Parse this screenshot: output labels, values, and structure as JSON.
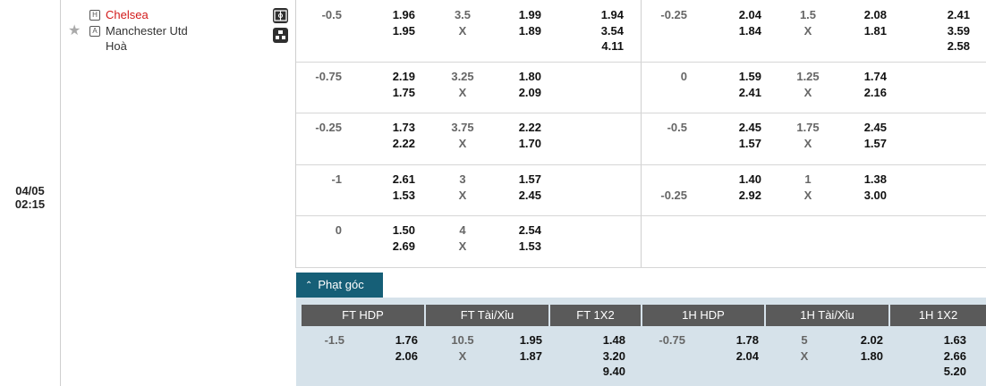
{
  "match": {
    "date": "04/05",
    "time": "02:15",
    "home_badge": "H",
    "away_badge": "A",
    "home_team": "Chelsea",
    "away_team": "Manchester Utd",
    "draw_label": "Hoà",
    "home_color": "#d21a1a"
  },
  "icons": {
    "favorite": "star-icon",
    "stats": "field-icon",
    "lineup": "lineup-icon"
  },
  "odds_rows": [
    {
      "ft_hdp": "-0.5",
      "ft_hdp_home": "1.96",
      "ft_hdp_away": "1.95",
      "ft_ou": "3.5",
      "ft_ou_x": "X",
      "ft_ou_over": "1.99",
      "ft_ou_under": "1.89",
      "ft_1x2": [
        "1.94",
        "3.54",
        "4.11"
      ],
      "h1_hdp_top": "-0.25",
      "h1_hdp_bottom": "",
      "h1_hdp_home": "2.04",
      "h1_hdp_away": "1.84",
      "h1_ou": "1.5",
      "h1_ou_x": "X",
      "h1_ou_over": "2.08",
      "h1_ou_under": "1.81",
      "h1_1x2": [
        "2.41",
        "3.59",
        "2.58"
      ]
    },
    {
      "ft_hdp": "-0.75",
      "ft_hdp_home": "2.19",
      "ft_hdp_away": "1.75",
      "ft_ou": "3.25",
      "ft_ou_x": "X",
      "ft_ou_over": "1.80",
      "ft_ou_under": "2.09",
      "ft_1x2": [
        "",
        "",
        ""
      ],
      "h1_hdp_top": "0",
      "h1_hdp_bottom": "",
      "h1_hdp_home": "1.59",
      "h1_hdp_away": "2.41",
      "h1_ou": "1.25",
      "h1_ou_x": "X",
      "h1_ou_over": "1.74",
      "h1_ou_under": "2.16",
      "h1_1x2": [
        "",
        "",
        ""
      ]
    },
    {
      "ft_hdp": "-0.25",
      "ft_hdp_home": "1.73",
      "ft_hdp_away": "2.22",
      "ft_ou": "3.75",
      "ft_ou_x": "X",
      "ft_ou_over": "2.22",
      "ft_ou_under": "1.70",
      "ft_1x2": [
        "",
        "",
        ""
      ],
      "h1_hdp_top": "-0.5",
      "h1_hdp_bottom": "",
      "h1_hdp_home": "2.45",
      "h1_hdp_away": "1.57",
      "h1_ou": "1.75",
      "h1_ou_x": "X",
      "h1_ou_over": "2.45",
      "h1_ou_under": "1.57",
      "h1_1x2": [
        "",
        "",
        ""
      ]
    },
    {
      "ft_hdp": "-1",
      "ft_hdp_home": "2.61",
      "ft_hdp_away": "1.53",
      "ft_ou": "3",
      "ft_ou_x": "X",
      "ft_ou_over": "1.57",
      "ft_ou_under": "2.45",
      "ft_1x2": [
        "",
        "",
        ""
      ],
      "h1_hdp_top": "",
      "h1_hdp_bottom": "-0.25",
      "h1_hdp_home": "1.40",
      "h1_hdp_away": "2.92",
      "h1_ou": "1",
      "h1_ou_x": "X",
      "h1_ou_over": "1.38",
      "h1_ou_under": "3.00",
      "h1_1x2": [
        "",
        "",
        ""
      ]
    },
    {
      "ft_hdp": "0",
      "ft_hdp_home": "1.50",
      "ft_hdp_away": "2.69",
      "ft_ou": "4",
      "ft_ou_x": "X",
      "ft_ou_over": "2.54",
      "ft_ou_under": "1.53",
      "ft_1x2": [
        "",
        "",
        ""
      ],
      "h1_hdp_top": "",
      "h1_hdp_bottom": "",
      "h1_hdp_home": "",
      "h1_hdp_away": "",
      "h1_ou": "",
      "h1_ou_x": "",
      "h1_ou_over": "",
      "h1_ou_under": "",
      "h1_1x2": [
        "",
        "",
        ""
      ]
    }
  ],
  "corners": {
    "tab_label": "Phạt góc",
    "headers": [
      "FT HDP",
      "FT Tài/Xỉu",
      "FT 1X2",
      "1H HDP",
      "1H Tài/Xỉu",
      "1H 1X2"
    ],
    "row": {
      "ft_hdp": "-1.5",
      "ft_hdp_home": "1.76",
      "ft_hdp_away": "2.06",
      "ft_ou": "10.5",
      "ft_ou_x": "X",
      "ft_ou_over": "1.95",
      "ft_ou_under": "1.87",
      "ft_1x2": [
        "1.48",
        "3.20",
        "9.40"
      ],
      "h1_hdp": "-0.75",
      "h1_hdp_home": "1.78",
      "h1_hdp_away": "2.04",
      "h1_ou": "5",
      "h1_ou_x": "X",
      "h1_ou_over": "2.02",
      "h1_ou_under": "1.80",
      "h1_1x2": [
        "1.63",
        "2.66",
        "5.20"
      ]
    },
    "tab_color": "#165f77",
    "header_color": "#5a5a5a",
    "panel_color": "#d6e2ea"
  }
}
